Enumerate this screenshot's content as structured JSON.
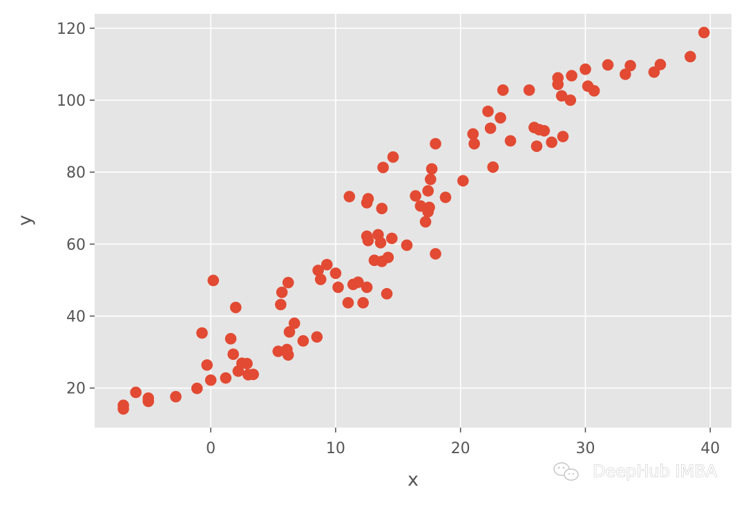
{
  "chart_data": {
    "type": "scatter",
    "title": "",
    "xlabel": "x",
    "ylabel": "y",
    "xlim": [
      -9.3,
      41.7
    ],
    "ylim": [
      9,
      124
    ],
    "xticks": [
      0,
      10,
      20,
      30,
      40
    ],
    "yticks": [
      20,
      40,
      60,
      80,
      100,
      120
    ],
    "grid": true,
    "style": "ggplot",
    "marker_color": "#E24A33",
    "background_color": "#E5E5E5",
    "grid_color": "#FFFFFF",
    "points": [
      [
        -7.0,
        15.2
      ],
      [
        -7.0,
        14.2
      ],
      [
        -6.0,
        18.8
      ],
      [
        -5.0,
        17.2
      ],
      [
        -5.0,
        16.3
      ],
      [
        -2.8,
        17.6
      ],
      [
        -1.1,
        19.9
      ],
      [
        -0.7,
        35.3
      ],
      [
        -0.3,
        26.4
      ],
      [
        0.0,
        22.2
      ],
      [
        0.2,
        49.9
      ],
      [
        1.2,
        22.8
      ],
      [
        1.6,
        33.7
      ],
      [
        1.8,
        29.4
      ],
      [
        2.0,
        42.4
      ],
      [
        2.2,
        24.7
      ],
      [
        2.5,
        26.9
      ],
      [
        2.9,
        26.8
      ],
      [
        3.0,
        23.7
      ],
      [
        3.4,
        23.8
      ],
      [
        5.4,
        30.2
      ],
      [
        5.6,
        43.2
      ],
      [
        5.7,
        46.6
      ],
      [
        6.1,
        30.7
      ],
      [
        6.2,
        29.2
      ],
      [
        6.2,
        49.3
      ],
      [
        6.3,
        35.6
      ],
      [
        6.7,
        38.0
      ],
      [
        7.4,
        33.1
      ],
      [
        8.5,
        34.2
      ],
      [
        8.6,
        52.7
      ],
      [
        8.8,
        50.2
      ],
      [
        9.3,
        54.3
      ],
      [
        10.0,
        51.9
      ],
      [
        10.2,
        48.0
      ],
      [
        11.0,
        43.7
      ],
      [
        11.1,
        73.2
      ],
      [
        11.4,
        48.8
      ],
      [
        11.8,
        49.4
      ],
      [
        12.2,
        43.7
      ],
      [
        12.5,
        62.2
      ],
      [
        12.5,
        48.0
      ],
      [
        12.5,
        71.5
      ],
      [
        12.6,
        72.6
      ],
      [
        12.6,
        61.0
      ],
      [
        13.1,
        55.5
      ],
      [
        13.4,
        62.6
      ],
      [
        13.6,
        60.4
      ],
      [
        13.7,
        55.2
      ],
      [
        13.7,
        69.9
      ],
      [
        13.8,
        81.3
      ],
      [
        14.1,
        46.2
      ],
      [
        14.2,
        56.3
      ],
      [
        14.5,
        61.6
      ],
      [
        14.6,
        84.2
      ],
      [
        15.7,
        59.7
      ],
      [
        16.4,
        73.4
      ],
      [
        16.8,
        70.6
      ],
      [
        17.2,
        66.2
      ],
      [
        17.4,
        69.0
      ],
      [
        17.4,
        74.8
      ],
      [
        17.5,
        70.2
      ],
      [
        17.6,
        78.0
      ],
      [
        17.7,
        80.9
      ],
      [
        18.0,
        87.9
      ],
      [
        18.0,
        57.3
      ],
      [
        18.8,
        73.0
      ],
      [
        20.2,
        77.6
      ],
      [
        21.0,
        90.6
      ],
      [
        21.1,
        87.9
      ],
      [
        22.2,
        96.9
      ],
      [
        22.4,
        92.2
      ],
      [
        22.6,
        81.4
      ],
      [
        23.2,
        95.1
      ],
      [
        23.4,
        102.8
      ],
      [
        24.0,
        88.7
      ],
      [
        25.5,
        102.8
      ],
      [
        25.9,
        92.4
      ],
      [
        26.1,
        87.2
      ],
      [
        26.3,
        91.8
      ],
      [
        26.7,
        91.5
      ],
      [
        27.3,
        88.3
      ],
      [
        27.8,
        106.2
      ],
      [
        27.8,
        104.4
      ],
      [
        28.1,
        101.2
      ],
      [
        28.2,
        89.9
      ],
      [
        28.8,
        100.0
      ],
      [
        28.9,
        106.8
      ],
      [
        30.0,
        108.6
      ],
      [
        30.2,
        103.9
      ],
      [
        30.7,
        102.6
      ],
      [
        31.8,
        109.8
      ],
      [
        33.2,
        107.2
      ],
      [
        33.6,
        109.6
      ],
      [
        35.5,
        107.8
      ],
      [
        36.0,
        109.9
      ],
      [
        38.4,
        112.1
      ],
      [
        39.5,
        118.8
      ]
    ]
  },
  "watermark": {
    "text": "DeepHub IMBA",
    "icon": "wechat-icon"
  }
}
